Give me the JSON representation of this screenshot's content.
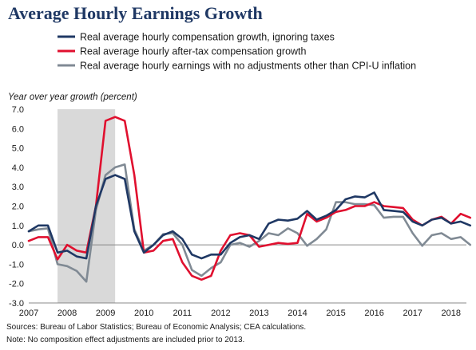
{
  "chart_data": {
    "type": "line",
    "title": "Average Hourly Earnings Growth",
    "ylabel": "Year over year growth (percent)",
    "xlabel": "",
    "ylim": [
      -3.0,
      7.0
    ],
    "yticks": [
      "7.0",
      "6.0",
      "5.0",
      "4.0",
      "3.0",
      "2.0",
      "1.0",
      "0.0",
      "-1.0",
      "-2.0",
      "-3.0"
    ],
    "xticks": [
      "2007",
      "2008",
      "2009",
      "2010",
      "2011",
      "2012",
      "2013",
      "2014",
      "2015",
      "2016",
      "2017",
      "2018"
    ],
    "x_start": 2007.0,
    "x_step": 0.25,
    "recession": [
      2007.75,
      2009.25
    ],
    "legend_position": "top",
    "grid": false,
    "series": [
      {
        "name": "Real average hourly compensation growth, ignoring taxes",
        "color": "#1f3864",
        "values": [
          0.7,
          1.0,
          1.0,
          -0.4,
          -0.3,
          -0.6,
          -0.7,
          2.0,
          3.4,
          3.6,
          3.4,
          0.7,
          -0.4,
          0.0,
          0.5,
          0.7,
          0.3,
          -0.5,
          -0.7,
          -0.5,
          -0.5,
          0.1,
          0.4,
          0.5,
          0.3,
          1.1,
          1.3,
          1.25,
          1.35,
          1.75,
          1.3,
          1.5,
          1.8,
          2.35,
          2.5,
          2.45,
          2.7,
          1.8,
          1.75,
          1.7,
          1.2,
          1.0,
          1.3,
          1.4,
          1.1,
          1.2,
          1.0
        ]
      },
      {
        "name": "Real average hourly after-tax compensation growth",
        "color": "#e0102f",
        "values": [
          0.2,
          0.4,
          0.4,
          -0.75,
          0.0,
          -0.3,
          -0.4,
          2.0,
          6.4,
          6.6,
          6.4,
          3.6,
          -0.4,
          -0.3,
          0.2,
          0.3,
          -0.9,
          -1.6,
          -1.8,
          -1.6,
          -0.3,
          0.5,
          0.6,
          0.5,
          -0.1,
          0.0,
          0.1,
          0.05,
          0.1,
          1.6,
          1.2,
          1.4,
          1.7,
          1.8,
          2.0,
          2.0,
          2.2,
          2.0,
          1.95,
          1.9,
          1.3,
          1.0,
          1.3,
          1.45,
          1.1,
          1.6,
          1.4
        ]
      },
      {
        "name": "Real average hourly earnings with no adjustments other than CPI-U inflation",
        "color": "#808a94",
        "values": [
          0.7,
          0.8,
          0.85,
          -1.0,
          -1.1,
          -1.35,
          -1.9,
          1.8,
          3.6,
          4.0,
          4.15,
          0.8,
          -0.3,
          0.0,
          0.55,
          0.6,
          0.0,
          -1.3,
          -1.6,
          -1.2,
          -0.9,
          0.0,
          0.1,
          -0.1,
          0.2,
          0.6,
          0.5,
          0.85,
          0.6,
          -0.05,
          0.3,
          0.8,
          2.2,
          2.2,
          2.1,
          2.1,
          2.05,
          1.4,
          1.45,
          1.45,
          0.6,
          -0.05,
          0.5,
          0.6,
          0.3,
          0.4,
          0.0
        ]
      }
    ]
  },
  "notes": {
    "sources": "Sources: Bureau of Labor Statistics; Bureau of Economic Analysis; CEA calculations.",
    "note": "Note: No composition effect adjustments are included prior to 2013."
  }
}
